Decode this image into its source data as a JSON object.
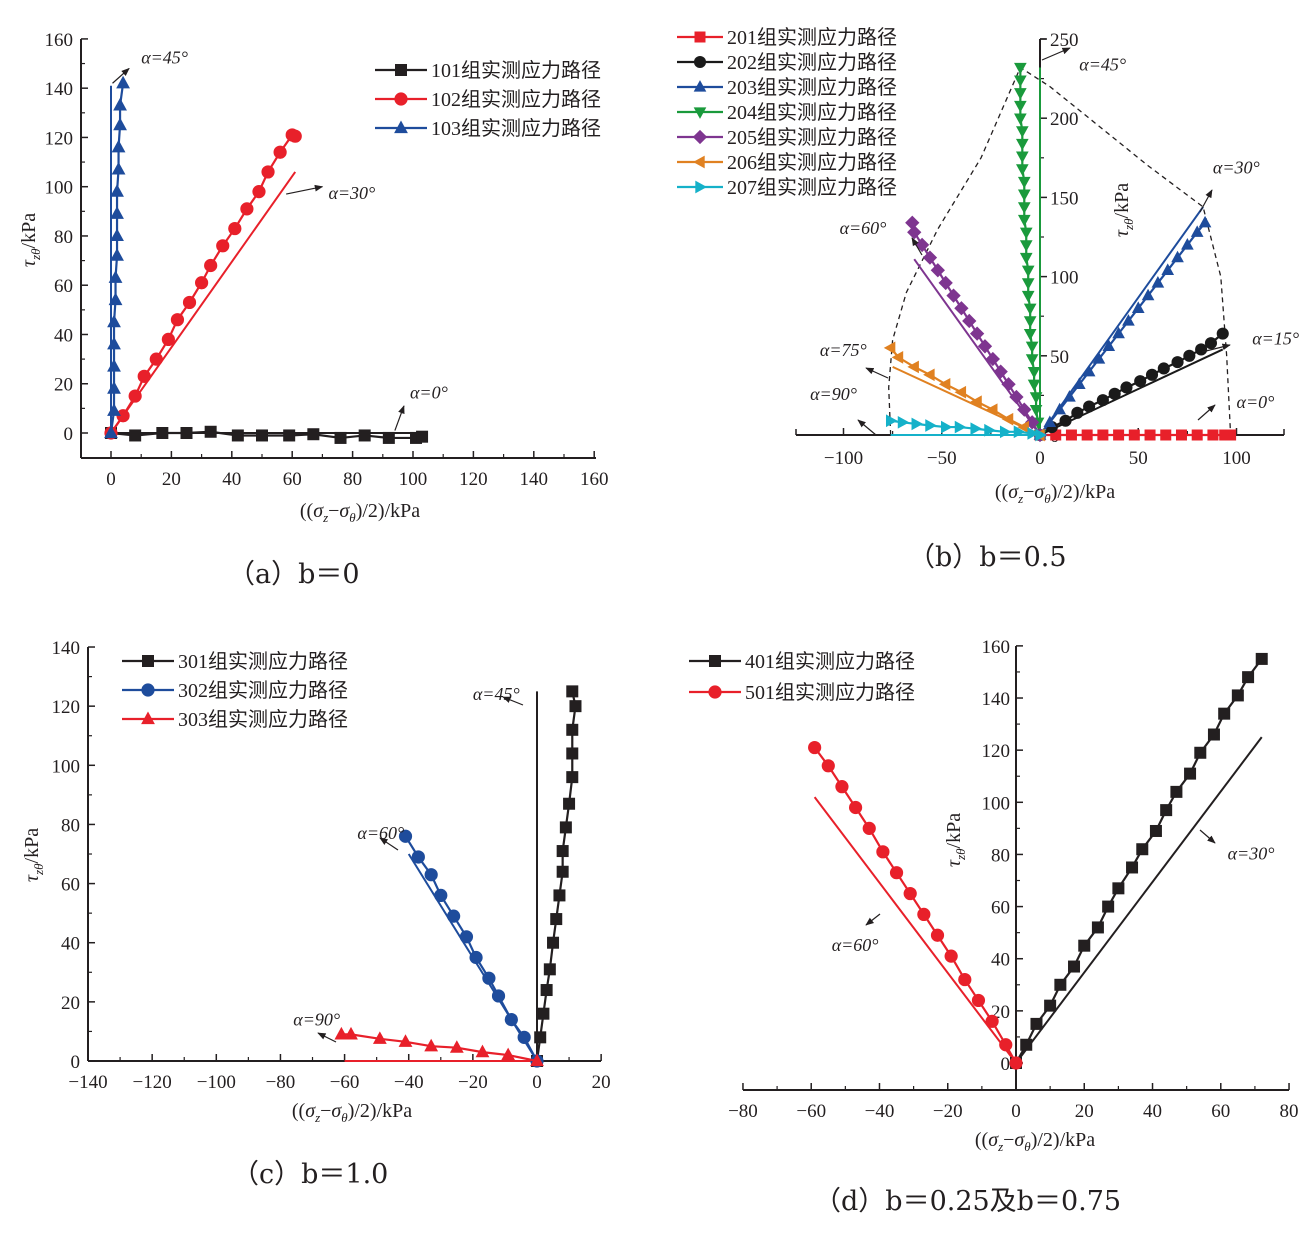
{
  "figure": {
    "legend_suffix": "组实测应力路径",
    "xlabel": "((σz−σθ)/2)/kPa",
    "ylabel": "τzθ/kPa"
  },
  "chart_data": [
    {
      "id": "a",
      "type": "line",
      "caption": "（a）b＝0",
      "xlabel": "((σz−σθ)/2)/kPa",
      "ylabel": "τzθ/kPa",
      "xlim": [
        -10,
        160
      ],
      "ylim": [
        -10,
        160
      ],
      "xticks": [
        0,
        20,
        40,
        60,
        80,
        100,
        120,
        140,
        160
      ],
      "yticks": [
        0,
        20,
        40,
        60,
        80,
        100,
        120,
        140,
        160
      ],
      "legend_position": "top-right",
      "series": [
        {
          "name": "101组实测应力路径",
          "color": "#231f20",
          "marker": "square",
          "x": [
            0,
            8,
            17,
            25,
            33,
            42,
            50,
            59,
            67,
            76,
            84,
            92,
            101,
            103
          ],
          "y": [
            0,
            -1,
            0,
            0,
            0.5,
            -1,
            -1,
            -1,
            -0.5,
            -2,
            -1,
            -2,
            -2,
            -1.5
          ]
        },
        {
          "name": "102组实测应力路径",
          "color": "#e8202a",
          "marker": "circle",
          "x": [
            0,
            4,
            8,
            11,
            15,
            19,
            22,
            26,
            30,
            33,
            37,
            41,
            45,
            49,
            52,
            56,
            60,
            61
          ],
          "y": [
            0,
            7,
            15,
            23,
            30,
            38,
            46,
            53,
            61,
            68,
            76,
            83,
            91,
            98,
            106,
            114,
            121,
            120.5
          ]
        },
        {
          "name": "103组实测应力路径",
          "color": "#1e4c9c",
          "marker": "triangle-up",
          "x": [
            0,
            1,
            1,
            1,
            1,
            1,
            1.5,
            1.5,
            2,
            2,
            2,
            2,
            2.5,
            2.5,
            3,
            3,
            4
          ],
          "y": [
            0,
            9,
            18,
            27,
            36,
            45,
            54,
            63,
            72,
            80,
            89,
            98,
            107,
            116,
            125,
            133,
            142
          ]
        }
      ],
      "theory_lines": [
        {
          "label": "α=0°",
          "color": "#231f20",
          "x": [
            0,
            103
          ],
          "y": [
            0,
            0
          ]
        },
        {
          "label": "α=30°",
          "color": "#e8202a",
          "x": [
            0,
            61
          ],
          "y": [
            0,
            106
          ]
        },
        {
          "label": "α=45°",
          "color": "#1e4c9c",
          "x": [
            0,
            0
          ],
          "y": [
            0,
            141
          ]
        }
      ],
      "annotations": [
        {
          "text": "α=45°",
          "x": 10,
          "y": 150,
          "arrow_from": [
            0.5,
            142
          ],
          "arrow_to": [
            6,
            148
          ]
        },
        {
          "text": "α=30°",
          "x": 72,
          "y": 95,
          "arrow_from": [
            58,
            97
          ],
          "arrow_to": [
            70,
            100
          ]
        },
        {
          "text": "α=0°",
          "x": 99,
          "y": 14,
          "arrow_from": [
            94,
            1
          ],
          "arrow_to": [
            97,
            11
          ]
        }
      ]
    },
    {
      "id": "b",
      "type": "line",
      "caption": "（b）b＝0.5",
      "xlabel": "((σz−σθ)/2)/kPa",
      "ylabel": "τzθ/kPa",
      "xlim": [
        -125,
        125
      ],
      "ylim": [
        0,
        250
      ],
      "xticks": [
        -100,
        -50,
        0,
        50,
        100
      ],
      "yticks": [
        0,
        50,
        100,
        150,
        200,
        250
      ],
      "legend_position": "top-left",
      "series": [
        {
          "name": "201组实测应力路径",
          "color": "#e8202a",
          "marker": "square",
          "x": [
            0,
            8,
            16,
            24,
            32,
            40,
            48,
            56,
            64,
            72,
            80,
            88,
            94,
            97
          ],
          "y": [
            0,
            0,
            0,
            0,
            0,
            0,
            0,
            0,
            0,
            0,
            0,
            0,
            0,
            0
          ]
        },
        {
          "name": "202组实测应力路径",
          "color": "#1a1a1a",
          "marker": "circle",
          "x": [
            0,
            6,
            13,
            19,
            25,
            32,
            38,
            44,
            51,
            57,
            63,
            70,
            76,
            82,
            87,
            93
          ],
          "y": [
            0,
            5,
            9,
            14,
            18,
            22,
            26,
            30,
            34,
            38,
            42,
            46,
            50,
            54,
            58,
            64
          ]
        },
        {
          "name": "203组实测应力路径",
          "color": "#1e4c9c",
          "marker": "triangle-up",
          "x": [
            0,
            5,
            10,
            15,
            20,
            25,
            30,
            35,
            40,
            45,
            50,
            55,
            60,
            65,
            70,
            75,
            80,
            84
          ],
          "y": [
            0,
            8,
            16,
            24,
            32,
            40,
            48,
            56,
            64,
            72,
            80,
            88,
            96,
            104,
            112,
            120,
            128,
            134
          ]
        },
        {
          "name": "204组实测应力路径",
          "color": "#1a9a3c",
          "marker": "triangle-down",
          "x": [
            0,
            -1,
            -2,
            -2,
            -3,
            -3,
            -4,
            -4,
            -5,
            -5,
            -5,
            -6,
            -6,
            -6,
            -7,
            -7,
            -7,
            -8,
            -8,
            -8,
            -8,
            -9,
            -9,
            -9,
            -9,
            -10,
            -10,
            -10,
            -10,
            -10
          ],
          "y": [
            0,
            8,
            16,
            24,
            32,
            40,
            48,
            56,
            64,
            72,
            80,
            88,
            96,
            104,
            112,
            120,
            128,
            136,
            144,
            152,
            160,
            168,
            176,
            184,
            192,
            200,
            208,
            216,
            224,
            232
          ]
        },
        {
          "name": "205组实测应力路径",
          "color": "#7e3590",
          "marker": "diamond",
          "x": [
            0,
            -4,
            -8,
            -12,
            -16,
            -20,
            -24,
            -28,
            -32,
            -36,
            -40,
            -44,
            -48,
            -52,
            -56,
            -60,
            -64,
            -65
          ],
          "y": [
            0,
            8,
            16,
            24,
            32,
            40,
            48,
            56,
            64,
            72,
            80,
            88,
            96,
            104,
            112,
            120,
            128,
            134
          ]
        },
        {
          "name": "206组实测应力路径",
          "color": "#e08121",
          "marker": "triangle-left",
          "x": [
            0,
            -8,
            -16,
            -24,
            -32,
            -40,
            -48,
            -56,
            -64,
            -72,
            -76
          ],
          "y": [
            0,
            5,
            10,
            16,
            21,
            27,
            32,
            38,
            43,
            49,
            55
          ]
        },
        {
          "name": "207组实测应力路径",
          "color": "#15b1c9",
          "marker": "triangle-right",
          "x": [
            0,
            -4,
            -11,
            -18,
            -26,
            -33,
            -41,
            -48,
            -56,
            -63,
            -70,
            -76
          ],
          "y": [
            0,
            1,
            2,
            2,
            3,
            4,
            5,
            5,
            6,
            7,
            8,
            9
          ]
        }
      ],
      "theory_lines": [
        {
          "label": "α=0°",
          "color": "#e8202a",
          "x": [
            0,
            97
          ],
          "y": [
            0,
            0
          ]
        },
        {
          "label": "α=15°",
          "color": "#1a1a1a",
          "x": [
            0,
            93
          ],
          "y": [
            0,
            54
          ]
        },
        {
          "label": "α=30°",
          "color": "#1e4c9c",
          "x": [
            0,
            83
          ],
          "y": [
            0,
            144
          ]
        },
        {
          "label": "α=45°",
          "color": "#1a9a3c",
          "x": [
            0,
            0
          ],
          "y": [
            0,
            232
          ]
        },
        {
          "label": "α=60°",
          "color": "#7e3590",
          "x": [
            0,
            -64
          ],
          "y": [
            0,
            111
          ]
        },
        {
          "label": "α=75°",
          "color": "#e08121",
          "x": [
            0,
            -75
          ],
          "y": [
            0,
            43
          ]
        },
        {
          "label": "α=90°",
          "color": "#15b1c9",
          "x": [
            0,
            -76
          ],
          "y": [
            0,
            0
          ]
        }
      ],
      "envelope": {
        "x": [
          -76,
          -77,
          -75,
          -68,
          -52,
          -30,
          -10,
          5,
          30,
          55,
          83,
          92,
          95,
          97
        ],
        "y": [
          0,
          30,
          60,
          90,
          130,
          175,
          232,
          220,
          195,
          170,
          144,
          100,
          50,
          0
        ]
      },
      "annotations": [
        {
          "text": "α=45°",
          "x": 20,
          "y": 230
        },
        {
          "text": "α=30°",
          "x": 88,
          "y": 165
        },
        {
          "text": "α=60°",
          "x": -102,
          "y": 127
        },
        {
          "text": "α=15°",
          "x": 108,
          "y": 57
        },
        {
          "text": "α=75°",
          "x": -112,
          "y": 50
        },
        {
          "text": "α=90°",
          "x": -117,
          "y": 22
        },
        {
          "text": "α=0°",
          "x": 100,
          "y": 17
        }
      ]
    },
    {
      "id": "c",
      "type": "line",
      "caption": "（c）b＝1.0",
      "xlabel": "((σz−σθ)/2)/kPa",
      "ylabel": "τzθ/kPa",
      "xlim": [
        -140,
        20
      ],
      "ylim": [
        0,
        140
      ],
      "xticks": [
        -140,
        -120,
        -100,
        -80,
        -60,
        -40,
        -20,
        0,
        20
      ],
      "yticks": [
        0,
        20,
        40,
        60,
        80,
        100,
        120,
        140
      ],
      "legend_position": "top-left",
      "series": [
        {
          "name": "301组实测应力路径",
          "color": "#231f20",
          "marker": "square",
          "x": [
            0,
            1,
            2,
            3,
            4,
            5,
            6,
            7,
            8,
            8,
            9,
            10,
            11,
            11,
            11,
            12,
            11
          ],
          "y": [
            0,
            8,
            16,
            24,
            31,
            40,
            48,
            56,
            64,
            71,
            79,
            87,
            96,
            104,
            112,
            120,
            125
          ]
        },
        {
          "name": "302组实测应力路径",
          "color": "#1e4c9c",
          "marker": "circle",
          "x": [
            0,
            -4,
            -8,
            -12,
            -15,
            -19,
            -22,
            -26,
            -30,
            -33,
            -37,
            -41
          ],
          "y": [
            0,
            8,
            14,
            22,
            28,
            35,
            42,
            49,
            56,
            63,
            69,
            76
          ]
        },
        {
          "name": "303组实测应力路径",
          "color": "#e8202a",
          "marker": "triangle-up",
          "x": [
            0,
            -9,
            -17,
            -25,
            -33,
            -41,
            -49,
            -58,
            -61
          ],
          "y": [
            0,
            2,
            3,
            4.5,
            5,
            6.5,
            7.5,
            9,
            9
          ]
        }
      ],
      "theory_lines": [
        {
          "label": "α=45°",
          "color": "#231f20",
          "x": [
            0,
            0
          ],
          "y": [
            0,
            125
          ]
        },
        {
          "label": "α=60°",
          "color": "#1e4c9c",
          "x": [
            0,
            -40
          ],
          "y": [
            0,
            70
          ]
        },
        {
          "label": "α=90°",
          "color": "#e8202a",
          "x": [
            0,
            -60
          ],
          "y": [
            0,
            0
          ]
        }
      ],
      "annotations": [
        {
          "text": "α=45°",
          "x": -20,
          "y": 122
        },
        {
          "text": "α=60°",
          "x": -56,
          "y": 75
        },
        {
          "text": "α=90°",
          "x": -76,
          "y": 12
        }
      ]
    },
    {
      "id": "d",
      "type": "line",
      "caption": "（d）b＝0.25及b＝0.75",
      "xlabel": "((σz−σθ)/2)/kPa",
      "ylabel": "τzθ/kPa",
      "xlim": [
        -80,
        80
      ],
      "ylim": [
        -10,
        160
      ],
      "xticks": [
        -80,
        -60,
        -40,
        -20,
        0,
        20,
        40,
        60,
        80
      ],
      "yticks": [
        0,
        20,
        40,
        60,
        80,
        100,
        120,
        140,
        160
      ],
      "legend_position": "top-left",
      "series": [
        {
          "name": "401组实测应力路径",
          "color": "#231f20",
          "marker": "square",
          "x": [
            0,
            3,
            6,
            10,
            13,
            17,
            20,
            24,
            27,
            30,
            34,
            37,
            41,
            44,
            47,
            51,
            54,
            58,
            61,
            65,
            68,
            72
          ],
          "y": [
            0,
            7,
            15,
            22,
            30,
            37,
            45,
            52,
            60,
            67,
            75,
            82,
            89,
            97,
            104,
            111,
            119,
            126,
            134,
            141,
            148,
            155
          ]
        },
        {
          "name": "501组实测应力路径",
          "color": "#e8202a",
          "marker": "circle",
          "x": [
            0,
            -3,
            -7,
            -11,
            -15,
            -19,
            -23,
            -27,
            -31,
            -35,
            -39,
            -43,
            -47,
            -51,
            -55,
            -59
          ],
          "y": [
            0,
            7,
            16,
            24,
            32,
            41,
            49,
            57,
            65,
            73,
            81,
            90,
            98,
            106,
            114,
            121
          ]
        }
      ],
      "theory_lines": [
        {
          "label": "α=30°",
          "color": "#231f20",
          "x": [
            0,
            72
          ],
          "y": [
            0,
            125
          ]
        },
        {
          "label": "α=60°",
          "color": "#e8202a",
          "x": [
            0,
            -59
          ],
          "y": [
            0,
            102
          ]
        }
      ],
      "annotations": [
        {
          "text": "α=30°",
          "x": 62,
          "y": 78
        },
        {
          "text": "α=60°",
          "x": -54,
          "y": 43
        }
      ]
    }
  ]
}
